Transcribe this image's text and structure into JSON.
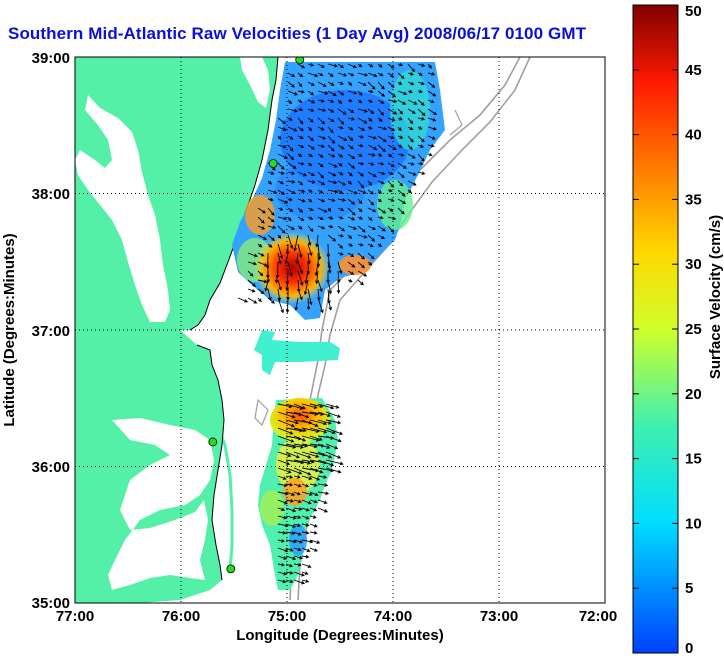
{
  "title": "Southern Mid-Atlantic Raw Velocities (1 Day Avg) 2008/06/17 0100 GMT",
  "map": {
    "lon_range": [
      -77,
      -72
    ],
    "lat_range": [
      35,
      39
    ],
    "x_label": "Longitude (Degrees:Minutes)",
    "y_label": "Latitude (Degrees:Minutes)",
    "x_ticks": [
      "77:00",
      "76:00",
      "75:00",
      "74:00",
      "73:00",
      "72:00"
    ],
    "y_ticks": [
      "39:00",
      "38:00",
      "37:00",
      "36:00",
      "35:00"
    ],
    "grid": "dotted",
    "land_color": "#55f0a8",
    "bathymetry_color": "#a0a0a0",
    "station_color": "#22dd22",
    "stations": [
      {
        "lon": -74.88,
        "lat": 38.98
      },
      {
        "lon": -75.13,
        "lat": 38.22
      },
      {
        "lon": -75.7,
        "lat": 36.18
      },
      {
        "lon": -75.53,
        "lat": 35.25
      }
    ]
  },
  "colorbar": {
    "label": "Surface Velocity (cm/s)",
    "min": 0,
    "max": 50,
    "ticks": [
      "0",
      "5",
      "10",
      "15",
      "20",
      "25",
      "30",
      "35",
      "40",
      "45",
      "50"
    ]
  }
}
